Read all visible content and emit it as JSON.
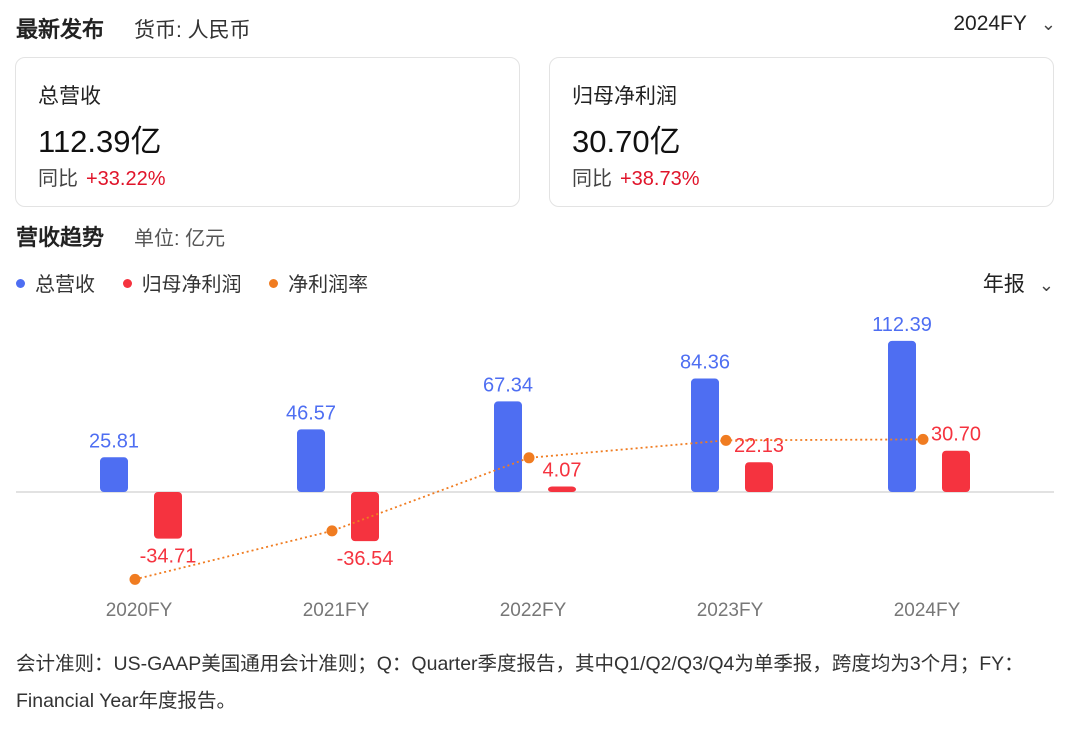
{
  "header": {
    "title": "最新发布",
    "currency": "货币: 人民币",
    "period": "2024FY",
    "chevron_icon": "chevron-down-icon"
  },
  "cards": [
    {
      "label": "总营收",
      "value": "112.39亿",
      "yoy_label": "同比",
      "yoy_value": "+33.22%"
    },
    {
      "label": "归母净利润",
      "value": "30.70亿",
      "yoy_label": "同比",
      "yoy_value": "+38.73%"
    }
  ],
  "trend": {
    "title": "营收趋势",
    "unit": "单位: 亿元",
    "report_type": "年报"
  },
  "legend": [
    {
      "label": "总营收",
      "color": "#4e6ef2"
    },
    {
      "label": "归母净利润",
      "color": "#f5333f"
    },
    {
      "label": "净利润率",
      "color": "#f07c21"
    }
  ],
  "chart_data": {
    "type": "bar",
    "categories": [
      "2020FY",
      "2021FY",
      "2022FY",
      "2023FY",
      "2024FY"
    ],
    "series": [
      {
        "name": "总营收",
        "color": "#4e6ef2",
        "values": [
          25.81,
          46.57,
          67.34,
          84.36,
          112.39
        ],
        "labels": [
          "25.81",
          "46.57",
          "67.34",
          "84.36",
          "112.39"
        ]
      },
      {
        "name": "归母净利润",
        "color": "#f5333f",
        "values": [
          -34.71,
          -36.54,
          4.07,
          22.13,
          30.7
        ],
        "labels": [
          "-34.71",
          "-36.54",
          "4.07",
          "22.13",
          "30.70"
        ]
      },
      {
        "name": "净利润率",
        "color": "#f07c21",
        "type": "line",
        "values": [
          -134.5,
          -78.5,
          6.0,
          26.2,
          27.3
        ]
      }
    ]
  },
  "footnote": "会计准则：US-GAAP美国通用会计准则；Q：Quarter季度报告，其中Q1/Q2/Q3/Q4为单季报，跨度均为3个月；FY：Financial Year年度报告。"
}
